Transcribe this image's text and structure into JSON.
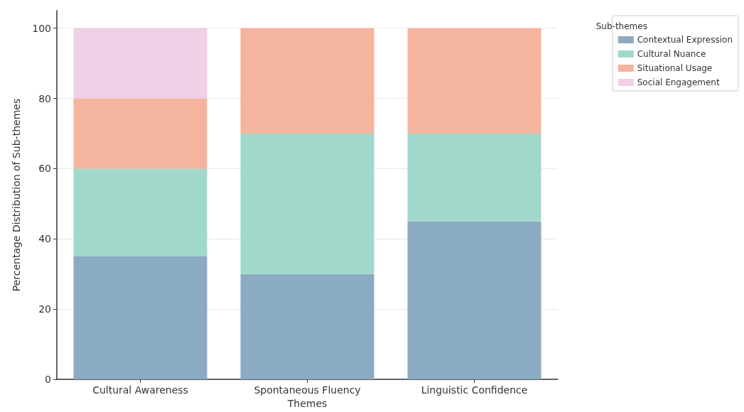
{
  "chart_data": {
    "type": "bar",
    "stacked": true,
    "xlabel": "Themes",
    "ylabel": "Percentage Distribution of Sub-themes",
    "legend_title": "Sub-themes",
    "categories": [
      "Cultural Awareness",
      "Spontaneous Fluency",
      "Linguistic Confidence"
    ],
    "series": [
      {
        "name": "Contextual Expression",
        "color": "#8aabc2",
        "values": [
          35,
          30,
          45
        ]
      },
      {
        "name": "Cultural Nuance",
        "color": "#a0d9cc",
        "values": [
          25,
          40,
          25
        ]
      },
      {
        "name": "Situational Usage",
        "color": "#f5b49e",
        "values": [
          20,
          30,
          30
        ]
      },
      {
        "name": "Social Engagement",
        "color": "#efd0e6",
        "values": [
          20,
          null,
          null
        ]
      }
    ],
    "ylim": [
      0,
      105
    ],
    "yticks": [
      0,
      20,
      40,
      60,
      80,
      100
    ],
    "grid": "y",
    "legend": "top right"
  }
}
